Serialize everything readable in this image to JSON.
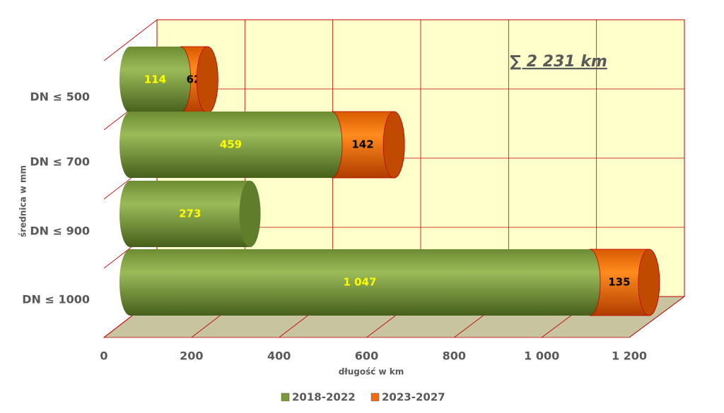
{
  "chart_data": {
    "type": "bar3d",
    "orientation": "horizontal",
    "stacked": true,
    "annotation": "∑ 2 231 km",
    "x_label": "długość w km",
    "y_label": "średnica w mm",
    "categories": [
      "DN ≤ 500",
      "DN ≤ 700",
      "DN ≤ 900",
      "DN ≤ 1000"
    ],
    "series": [
      {
        "name": "2018-2022",
        "color": "#7a9a3a",
        "label_color": "#ffff00",
        "values": [
          114,
          459,
          273,
          1047
        ],
        "value_labels": [
          "114",
          "459",
          "273",
          "1 047"
        ]
      },
      {
        "name": "2023-2027",
        "color": "#f06a10",
        "label_color": "#000000",
        "values": [
          62,
          142,
          null,
          135
        ]
      }
    ],
    "xlim": [
      0,
      1200
    ],
    "xticks": [
      0,
      200,
      400,
      600,
      800,
      {
        "value": 1000,
        "label": "1 000"
      },
      {
        "value": 1200,
        "label": "1 200"
      }
    ],
    "grid": true,
    "legend": "bottom"
  }
}
